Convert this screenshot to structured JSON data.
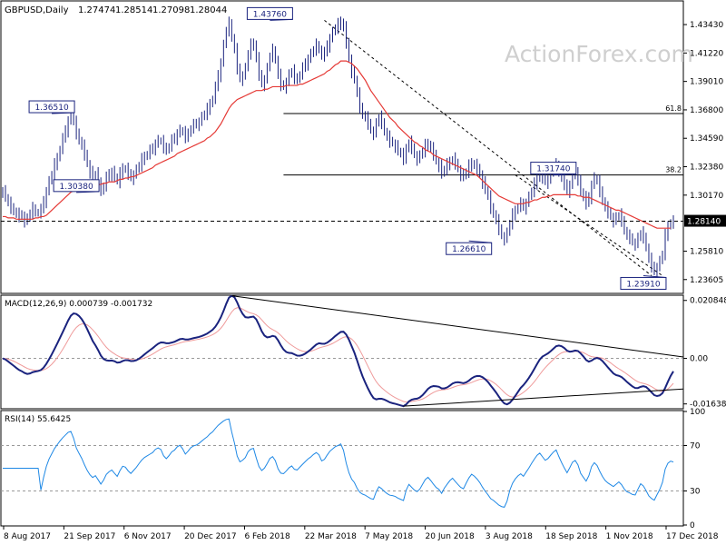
{
  "chart_data": {
    "type": "line",
    "symbol": "GBPUSD,Daily",
    "ohlc": {
      "open": "1.27474",
      "high": "1.28514",
      "low": "1.27098",
      "close": "1.28044"
    },
    "watermark": "ActionForex.com",
    "x_labels": [
      "8 Aug 2017",
      "21 Sep 2017",
      "6 Nov 2017",
      "20 Dec 2017",
      "6 Feb 2018",
      "22 Mar 2018",
      "7 May 2018",
      "20 Jun 2018",
      "3 Aug 2018",
      "18 Sep 2018",
      "1 Nov 2018",
      "17 Dec 2018"
    ],
    "colors": {
      "price": "#1a237e",
      "ma": "#e53935",
      "macd": "#1a237e",
      "signal": "#ef9a9a",
      "rsi": "#1e88e5",
      "trend": "#000000"
    },
    "price_panel": {
      "ylim": [
        1.226,
        1.452
      ],
      "y_ticks": [
        "1.43430",
        "1.41220",
        "1.39010",
        "1.36800",
        "1.34590",
        "1.32380",
        "1.30170",
        "1.25810",
        "1.23605"
      ],
      "current_price": "1.28140",
      "price_labels": [
        {
          "text": "1.43760",
          "x": 98,
          "value": 1.4376
        },
        {
          "text": "1.36510",
          "x": 18,
          "value": 1.3651
        },
        {
          "text": "1.30380",
          "x": 27,
          "value": 1.3038
        },
        {
          "text": "1.26610",
          "x": 171,
          "value": 1.2661
        },
        {
          "text": "1.31740",
          "x": 202,
          "value": 1.3174
        },
        {
          "text": "1.23910",
          "x": 235,
          "value": 1.2391
        }
      ],
      "fib_levels": [
        {
          "label": "61.8",
          "value": 1.3651
        },
        {
          "label": "38.2",
          "value": 1.3174
        }
      ],
      "fib_start_x": 103,
      "n_bars": 247,
      "price_series": [
        1.305,
        1.3,
        1.295,
        1.292,
        1.29,
        1.287,
        1.285,
        1.286,
        1.282,
        1.283,
        1.288,
        1.291,
        1.289,
        1.288,
        1.29,
        1.297,
        1.305,
        1.312,
        1.318,
        1.325,
        1.331,
        1.338,
        1.345,
        1.352,
        1.36,
        1.363,
        1.358,
        1.35,
        1.345,
        1.34,
        1.333,
        1.326,
        1.32,
        1.316,
        1.318,
        1.312,
        1.305,
        1.309,
        1.315,
        1.318,
        1.32,
        1.316,
        1.312,
        1.318,
        1.323,
        1.322,
        1.318,
        1.315,
        1.318,
        1.321,
        1.325,
        1.329,
        1.332,
        1.334,
        1.336,
        1.338,
        1.342,
        1.344,
        1.343,
        1.339,
        1.337,
        1.34,
        1.344,
        1.346,
        1.35,
        1.352,
        1.35,
        1.347,
        1.35,
        1.354,
        1.356,
        1.357,
        1.359,
        1.362,
        1.365,
        1.368,
        1.373,
        1.377,
        1.385,
        1.395,
        1.405,
        1.418,
        1.43,
        1.435,
        1.425,
        1.415,
        1.4,
        1.392,
        1.395,
        1.4,
        1.412,
        1.418,
        1.42,
        1.408,
        1.395,
        1.388,
        1.392,
        1.4,
        1.41,
        1.414,
        1.408,
        1.395,
        1.387,
        1.386,
        1.39,
        1.395,
        1.398,
        1.393,
        1.392,
        1.396,
        1.4,
        1.404,
        1.408,
        1.411,
        1.415,
        1.418,
        1.416,
        1.41,
        1.412,
        1.418,
        1.424,
        1.428,
        1.432,
        1.434,
        1.437,
        1.432,
        1.42,
        1.408,
        1.398,
        1.392,
        1.38,
        1.37,
        1.365,
        1.362,
        1.357,
        1.352,
        1.35,
        1.357,
        1.362,
        1.358,
        1.352,
        1.347,
        1.343,
        1.342,
        1.34,
        1.336,
        1.333,
        1.33,
        1.338,
        1.343,
        1.338,
        1.333,
        1.33,
        1.332,
        1.336,
        1.34,
        1.342,
        1.338,
        1.333,
        1.328,
        1.325,
        1.318,
        1.322,
        1.325,
        1.328,
        1.33,
        1.326,
        1.322,
        1.318,
        1.316,
        1.32,
        1.324,
        1.327,
        1.325,
        1.322,
        1.318,
        1.312,
        1.306,
        1.3,
        1.292,
        1.288,
        1.282,
        1.275,
        1.27,
        1.268,
        1.272,
        1.28,
        1.286,
        1.29,
        1.293,
        1.295,
        1.292,
        1.296,
        1.3,
        1.305,
        1.31,
        1.315,
        1.318,
        1.315,
        1.312,
        1.314,
        1.318,
        1.322,
        1.325,
        1.32,
        1.315,
        1.31,
        1.305,
        1.31,
        1.316,
        1.318,
        1.314,
        1.305,
        1.3,
        1.295,
        1.3,
        1.31,
        1.315,
        1.312,
        1.305,
        1.298,
        1.292,
        1.288,
        1.285,
        1.282,
        1.284,
        1.286,
        1.282,
        1.275,
        1.27,
        1.268,
        1.265,
        1.264,
        1.268,
        1.272,
        1.269,
        1.262,
        1.252,
        1.246,
        1.242,
        1.246,
        1.25,
        1.256,
        1.27,
        1.278,
        1.281,
        1.28
      ],
      "ma_series": [
        1.285,
        1.285,
        1.284,
        1.284,
        1.284,
        1.283,
        1.283,
        1.283,
        1.283,
        1.283,
        1.283,
        1.283,
        1.284,
        1.284,
        1.285,
        1.285,
        1.286,
        1.288,
        1.29,
        1.292,
        1.294,
        1.296,
        1.298,
        1.3,
        1.302,
        1.304,
        1.305,
        1.306,
        1.307,
        1.308,
        1.308,
        1.309,
        1.309,
        1.31,
        1.31,
        1.31,
        1.31,
        1.311,
        1.311,
        1.312,
        1.312,
        1.312,
        1.313,
        1.314,
        1.314,
        1.315,
        1.315,
        1.316,
        1.316,
        1.317,
        1.318,
        1.319,
        1.32,
        1.321,
        1.322,
        1.323,
        1.325,
        1.326,
        1.327,
        1.328,
        1.329,
        1.33,
        1.331,
        1.332,
        1.334,
        1.335,
        1.336,
        1.337,
        1.338,
        1.339,
        1.34,
        1.341,
        1.342,
        1.343,
        1.344,
        1.346,
        1.347,
        1.349,
        1.351,
        1.354,
        1.357,
        1.361,
        1.365,
        1.369,
        1.372,
        1.374,
        1.376,
        1.377,
        1.378,
        1.379,
        1.38,
        1.381,
        1.382,
        1.383,
        1.383,
        1.383,
        1.384,
        1.384,
        1.385,
        1.386,
        1.386,
        1.386,
        1.386,
        1.386,
        1.387,
        1.387,
        1.387,
        1.387,
        1.387,
        1.388,
        1.388,
        1.389,
        1.39,
        1.391,
        1.392,
        1.393,
        1.394,
        1.395,
        1.396,
        1.398,
        1.399,
        1.401,
        1.403,
        1.404,
        1.406,
        1.406,
        1.406,
        1.405,
        1.404,
        1.402,
        1.4,
        1.397,
        1.394,
        1.391,
        1.387,
        1.383,
        1.38,
        1.377,
        1.374,
        1.371,
        1.368,
        1.365,
        1.362,
        1.36,
        1.358,
        1.355,
        1.353,
        1.351,
        1.349,
        1.347,
        1.345,
        1.343,
        1.342,
        1.34,
        1.339,
        1.337,
        1.336,
        1.335,
        1.333,
        1.332,
        1.331,
        1.33,
        1.329,
        1.328,
        1.327,
        1.326,
        1.325,
        1.324,
        1.323,
        1.322,
        1.321,
        1.32,
        1.319,
        1.318,
        1.317,
        1.315,
        1.313,
        1.311,
        1.309,
        1.307,
        1.305,
        1.303,
        1.301,
        1.3,
        1.299,
        1.298,
        1.297,
        1.296,
        1.295,
        1.295,
        1.295,
        1.295,
        1.296,
        1.296,
        1.297,
        1.298,
        1.298,
        1.299,
        1.3,
        1.3,
        1.301,
        1.301,
        1.302,
        1.302,
        1.302,
        1.302,
        1.302,
        1.302,
        1.302,
        1.302,
        1.302,
        1.301,
        1.301,
        1.3,
        1.3,
        1.3,
        1.299,
        1.298,
        1.297,
        1.296,
        1.295,
        1.294,
        1.293,
        1.292,
        1.291,
        1.29,
        1.29,
        1.289,
        1.288,
        1.287,
        1.286,
        1.285,
        1.284,
        1.283,
        1.282,
        1.281,
        1.28,
        1.279,
        1.278,
        1.277,
        1.276,
        1.276,
        1.276,
        1.276,
        1.276,
        1.276
      ]
    },
    "macd_panel": {
      "label": "MACD(12,26,9) 0.000739 -0.001732",
      "ylim": [
        -0.0178,
        0.0224
      ],
      "y_ticks": [
        "0.020848",
        "0.00",
        "-0.016389"
      ],
      "y_tick_values": [
        0.020848,
        0.0,
        -0.016389
      ],
      "zero_line_value": 0.0
    },
    "rsi_panel": {
      "label": "RSI(14) 55.6425",
      "ylim": [
        0,
        100
      ],
      "y_ticks": [
        "100",
        "70",
        "30",
        "0"
      ],
      "y_tick_values": [
        100,
        70,
        30,
        0
      ],
      "levels": [
        70,
        30
      ]
    }
  }
}
